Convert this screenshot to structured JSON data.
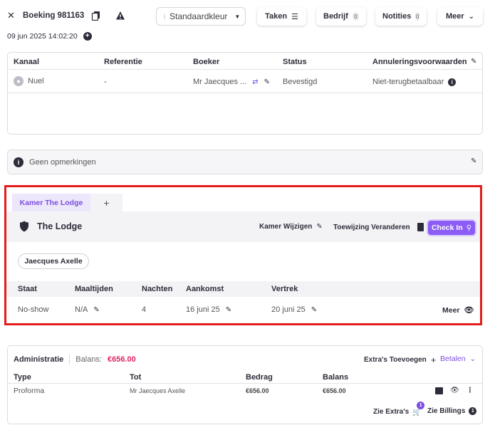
{
  "header": {
    "title": "Boeking 981163",
    "date": "09 jun 2025 14:02:20",
    "color_select": "Standaardkleur",
    "buttons": {
      "tasks": "Taken",
      "company": "Bedrijf",
      "company_count": "0",
      "notes": "Notities",
      "notes_count": "0",
      "more": "Meer"
    }
  },
  "booking_table": {
    "headers": [
      "Kanaal",
      "Referentie",
      "Boeker",
      "Status",
      "Annuleringsvoorwaarden"
    ],
    "row": {
      "channel": "Nuel",
      "reference": "-",
      "booker": "Mr Jaecques ...",
      "status": "Bevestigd",
      "cancellation": "Niet-terugbetaalbaar"
    }
  },
  "remarks": {
    "text": "Geen opmerkingen"
  },
  "room_section": {
    "tab_label": "Kamer The Lodge",
    "add_tab": "+",
    "room_name": "The Lodge",
    "actions": {
      "change_room": "Kamer Wijzigen",
      "change_assignment": "Toewijzing Veranderen",
      "check_in": "Check In"
    },
    "guest_chip": "Jaecques Axelle",
    "table_headers": [
      "Staat",
      "Maaltijden",
      "Nachten",
      "Aankomst",
      "Vertrek"
    ],
    "row": {
      "state": "No-show",
      "meals": "N/A",
      "nights": "4",
      "arrival": "16 juni 25",
      "departure": "20 juni 25",
      "more": "Meer"
    }
  },
  "administration": {
    "title": "Administratie",
    "balance_label": "Balans:",
    "balance_value": "€656.00",
    "add_extras": "Extra's Toevoegen",
    "pay": "Betalen",
    "headers": [
      "Type",
      "Tot",
      "Bedrag",
      "Balans"
    ],
    "row": {
      "type": "Proforma",
      "to": "Mr Jaecques Axelle",
      "amount": "€656.00",
      "balance": "€656.00"
    },
    "see_extras": "Zie Extra's",
    "extras_count": "1",
    "see_billings": "Zie Billings",
    "billings_count": "1"
  },
  "colors": {
    "accent": "#8b5cf6",
    "balance": "#e0245e",
    "highlight_frame": "#e41c1c"
  }
}
